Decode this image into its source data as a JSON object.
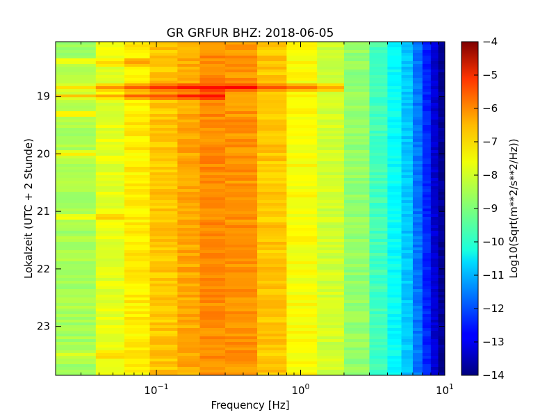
{
  "chart_data": {
    "type": "heatmap",
    "title": "GR GRFUR BHZ: 2018-06-05",
    "xlabel": "Frequency [Hz]",
    "ylabel": "Lokalzeit (UTC + 2 Stunde)",
    "xscale": "log",
    "xlim": [
      0.02,
      10
    ],
    "x_ticks": [
      {
        "value": 0.1,
        "base": "10",
        "exp": "−1"
      },
      {
        "value": 1,
        "base": "10",
        "exp": "0"
      },
      {
        "value": 10,
        "base": "10",
        "exp": "1"
      }
    ],
    "ylim": [
      18.05,
      23.85
    ],
    "y_inverted": true,
    "y_ticks": [
      {
        "value": 19,
        "label": "19"
      },
      {
        "value": 20,
        "label": "20"
      },
      {
        "value": 21,
        "label": "21"
      },
      {
        "value": 22,
        "label": "22"
      },
      {
        "value": 23,
        "label": "23"
      }
    ],
    "colorbar": {
      "label": "Log10(Sqrt(m**2/s**2/Hz))",
      "range": [
        -14,
        -4
      ],
      "colormap": "jet",
      "ticks": [
        {
          "value": -4,
          "label": "−4"
        },
        {
          "value": -5,
          "label": "−5"
        },
        {
          "value": -6,
          "label": "−6"
        },
        {
          "value": -7,
          "label": "−7"
        },
        {
          "value": -8,
          "label": "−8"
        },
        {
          "value": -9,
          "label": "−9"
        },
        {
          "value": -10,
          "label": "−10"
        },
        {
          "value": -11,
          "label": "−11"
        },
        {
          "value": -12,
          "label": "−12"
        },
        {
          "value": -13,
          "label": "−13"
        },
        {
          "value": -14,
          "label": "−14"
        }
      ]
    },
    "frequency_bins": [
      0.02,
      0.038,
      0.06,
      0.09,
      0.14,
      0.2,
      0.3,
      0.5,
      0.8,
      1.3,
      2.0,
      3.0,
      4.0,
      5.0,
      6.0,
      7.0,
      8.0,
      9.0,
      10.0
    ],
    "baseline_psd": [
      -8.6,
      -8.0,
      -7.6,
      -7.2,
      -6.9,
      -6.6,
      -6.7,
      -7.2,
      -7.8,
      -8.2,
      -8.8,
      -9.6,
      -10.2,
      -10.8,
      -11.6,
      -12.4,
      -13.2,
      -13.8
    ],
    "events": [
      {
        "time": 18.4,
        "label": "",
        "fmax": 0.1,
        "boost": 0.9
      },
      {
        "time": 18.85,
        "label": "",
        "fmax": 1.8,
        "boost": 1.4
      },
      {
        "time": 19.0,
        "label": "",
        "fmax": 0.25,
        "boost": 1.3
      },
      {
        "time": 19.3,
        "label": "",
        "fmax": 0.04,
        "boost": 1.2
      },
      {
        "time": 20.0,
        "label": "",
        "fmax": 0.04,
        "boost": 1.1
      },
      {
        "time": 21.1,
        "label": "",
        "fmax": 0.06,
        "boost": 1.0
      },
      {
        "time": 23.5,
        "label": "",
        "fmax": 0.06,
        "boost": 0.8
      }
    ]
  }
}
